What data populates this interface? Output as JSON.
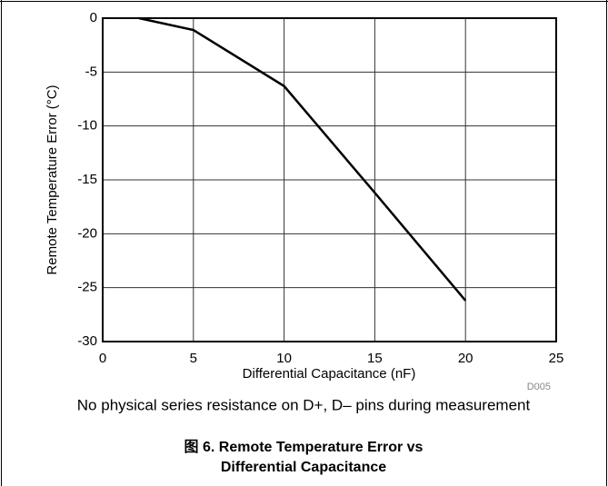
{
  "chart_data": {
    "type": "line",
    "x": [
      2,
      5,
      10,
      15,
      20
    ],
    "series": [
      {
        "name": "Remote Temperature Error",
        "color": "#000000",
        "values": [
          0,
          -1.1,
          -6.3,
          -16.2,
          -26.2
        ]
      }
    ],
    "xlim": [
      0,
      25
    ],
    "xticks": [
      0,
      5,
      10,
      15,
      20,
      25
    ],
    "ylim": [
      -30,
      0
    ],
    "yticks": [
      -30,
      -25,
      -20,
      -15,
      -10,
      -5,
      0
    ],
    "grid": true,
    "xlabel": "Differential Capacitance (nF)",
    "ylabel": "Remote Temperature  Error (°C)",
    "code": "D005",
    "note": "No physical series resistance on D+, D– pins during measurement",
    "caption": [
      "图 6. Remote Temperature Error vs",
      "Differential Capacitance"
    ]
  }
}
